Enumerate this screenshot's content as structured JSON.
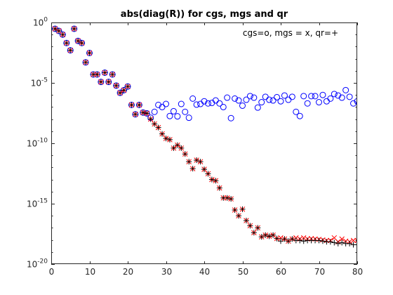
{
  "chart_data": {
    "type": "scatter",
    "title": "abs(diag(R)) for cgs, mgs and qr",
    "annotation": "cgs=o, mgs = x, qr=+",
    "xlabel": "",
    "ylabel": "",
    "xlim": [
      0,
      80
    ],
    "ylim": [
      1e-20,
      1
    ],
    "yscale": "log",
    "grid": false,
    "x_ticks": [
      0,
      10,
      20,
      30,
      40,
      50,
      60,
      70,
      80
    ],
    "y_ticks": [
      {
        "value": 1.0,
        "base": "10",
        "exp": "0"
      },
      {
        "value": 1e-05,
        "base": "10",
        "exp": "-5"
      },
      {
        "value": 1e-10,
        "base": "10",
        "exp": "-10"
      },
      {
        "value": 1e-15,
        "base": "10",
        "exp": "-15"
      },
      {
        "value": 1e-20,
        "base": "10",
        "exp": "-20"
      }
    ],
    "colors": {
      "cgs": "#0000ff",
      "mgs": "#ff0000",
      "qr": "#000000",
      "axes": "#262626"
    },
    "series": [
      {
        "marker": "o",
        "color": "#0000ff",
        "x": [
          1,
          2,
          3,
          4,
          5,
          6,
          7,
          8,
          9,
          10,
          11,
          12,
          13,
          14,
          15,
          16,
          17,
          18,
          19,
          20,
          21,
          22,
          23,
          24,
          25,
          26,
          27,
          28,
          29,
          30,
          31,
          32,
          33,
          34,
          35,
          36,
          37,
          38,
          39,
          40,
          41,
          42,
          43,
          44,
          45,
          46,
          47,
          48,
          49,
          50,
          51,
          52,
          53,
          54,
          55,
          56,
          57,
          58,
          59,
          60,
          61,
          62,
          63,
          64,
          65,
          66,
          67,
          68,
          69,
          70,
          71,
          72,
          73,
          74,
          75,
          76,
          77,
          78,
          79,
          80
        ],
        "y": [
          0.3,
          0.2,
          0.1,
          0.02,
          0.005,
          0.3,
          0.03,
          0.02,
          0.0005,
          0.003,
          5e-05,
          5e-05,
          1.2e-05,
          7e-05,
          1.2e-05,
          5e-05,
          6e-06,
          1.5e-06,
          2.5e-06,
          5e-06,
          1.5e-07,
          2.5e-08,
          1.5e-07,
          3.5e-08,
          3e-08,
          1.3e-08,
          4e-08,
          1.5e-07,
          1e-07,
          1.8e-07,
          1.8e-08,
          4.5e-08,
          1.7e-08,
          1.8e-07,
          4e-08,
          1.3e-08,
          5e-07,
          1.6e-07,
          1.8e-07,
          3e-07,
          2e-07,
          2.2e-07,
          3.5e-07,
          2e-07,
          1e-07,
          6e-07,
          1.2e-08,
          5e-07,
          3.5e-07,
          1.3e-07,
          4e-07,
          8e-07,
          6e-07,
          9e-08,
          2.5e-07,
          7e-07,
          4e-07,
          3.5e-07,
          6.5e-07,
          3e-07,
          9e-07,
          4e-07,
          7e-07,
          4e-08,
          1.8e-08,
          8e-07,
          2e-07,
          8e-07,
          8e-07,
          2.5e-07,
          1e-06,
          3e-07,
          5e-07,
          1.2e-06,
          9e-07,
          6e-07,
          2.5e-06,
          7e-07,
          2e-07,
          3e-07
        ]
      },
      {
        "marker": "x",
        "color": "#ff0000",
        "x": [
          1,
          2,
          3,
          4,
          5,
          6,
          7,
          8,
          9,
          10,
          11,
          12,
          13,
          14,
          15,
          16,
          17,
          18,
          19,
          20,
          21,
          22,
          23,
          24,
          25,
          26,
          27,
          28,
          29,
          30,
          31,
          32,
          33,
          34,
          35,
          36,
          37,
          38,
          39,
          40,
          41,
          42,
          43,
          44,
          45,
          46,
          47,
          48,
          49,
          50,
          51,
          52,
          53,
          54,
          55,
          56,
          57,
          58,
          59,
          60,
          61,
          62,
          63,
          64,
          65,
          66,
          67,
          68,
          69,
          70,
          71,
          72,
          73,
          74,
          75,
          76,
          77,
          78,
          79,
          80
        ],
        "y": [
          0.3,
          0.2,
          0.1,
          0.02,
          0.005,
          0.3,
          0.03,
          0.02,
          0.0005,
          0.003,
          5e-05,
          5e-05,
          1.2e-05,
          7e-05,
          1.2e-05,
          5e-05,
          6e-06,
          1.5e-06,
          2.5e-06,
          5e-06,
          1.5e-07,
          2.5e-08,
          1.5e-07,
          3.5e-08,
          3e-08,
          1e-08,
          4e-09,
          2e-09,
          6e-10,
          2.5e-10,
          2e-10,
          4e-11,
          7e-11,
          4e-11,
          1.3e-11,
          3e-12,
          8e-13,
          4e-12,
          3e-12,
          7e-13,
          3e-13,
          1e-13,
          8e-14,
          2e-14,
          3e-15,
          3e-15,
          2.5e-15,
          3e-16,
          1e-16,
          3.5e-16,
          4e-17,
          1.5e-17,
          4e-18,
          1e-17,
          1.8e-18,
          2.5e-18,
          2e-18,
          2.5e-18,
          1.3e-18,
          1.5e-18,
          1.2e-18,
          8e-19,
          1.2e-18,
          1.5e-18,
          1.2e-18,
          1.5e-18,
          1.2e-18,
          1.3e-18,
          1.2e-18,
          1.1e-18,
          1e-18,
          9e-19,
          9e-19,
          1.5e-18,
          7e-19,
          1.2e-18,
          8e-19,
          7e-19,
          9e-19,
          9e-19
        ]
      },
      {
        "marker": "+",
        "color": "#000000",
        "x": [
          1,
          2,
          3,
          4,
          5,
          6,
          7,
          8,
          9,
          10,
          11,
          12,
          13,
          14,
          15,
          16,
          17,
          18,
          19,
          20,
          21,
          22,
          23,
          24,
          25,
          26,
          27,
          28,
          29,
          30,
          31,
          32,
          33,
          34,
          35,
          36,
          37,
          38,
          39,
          40,
          41,
          42,
          43,
          44,
          45,
          46,
          47,
          48,
          49,
          50,
          51,
          52,
          53,
          54,
          55,
          56,
          57,
          58,
          59,
          60,
          61,
          62,
          63,
          64,
          65,
          66,
          67,
          68,
          69,
          70,
          71,
          72,
          73,
          74,
          75,
          76,
          77,
          78,
          79,
          80
        ],
        "y": [
          0.3,
          0.2,
          0.1,
          0.02,
          0.005,
          0.3,
          0.03,
          0.02,
          0.0005,
          0.003,
          5e-05,
          5e-05,
          1.2e-05,
          7e-05,
          1.2e-05,
          5e-05,
          6e-06,
          1.5e-06,
          2.5e-06,
          5e-06,
          1.5e-07,
          2.5e-08,
          1.5e-07,
          3.5e-08,
          3e-08,
          1e-08,
          4e-09,
          2e-09,
          6e-10,
          2.5e-10,
          2e-10,
          4e-11,
          7e-11,
          4e-11,
          1.3e-11,
          3e-12,
          8e-13,
          4e-12,
          3e-12,
          7e-13,
          3e-13,
          1e-13,
          8e-14,
          2e-14,
          3e-15,
          3e-15,
          2.5e-15,
          3e-16,
          1e-16,
          3.5e-16,
          4e-17,
          1.5e-17,
          4e-18,
          1e-17,
          1.8e-18,
          2.5e-18,
          2e-18,
          2.5e-18,
          1.3e-18,
          8e-19,
          1.2e-18,
          8e-19,
          1.2e-18,
          9e-19,
          9e-19,
          8e-19,
          9e-19,
          9e-19,
          9e-19,
          9e-19,
          8e-19,
          7e-19,
          7e-19,
          6e-19,
          5e-19,
          6e-19,
          5e-19,
          5e-19,
          4e-19,
          4e-19
        ]
      }
    ]
  }
}
